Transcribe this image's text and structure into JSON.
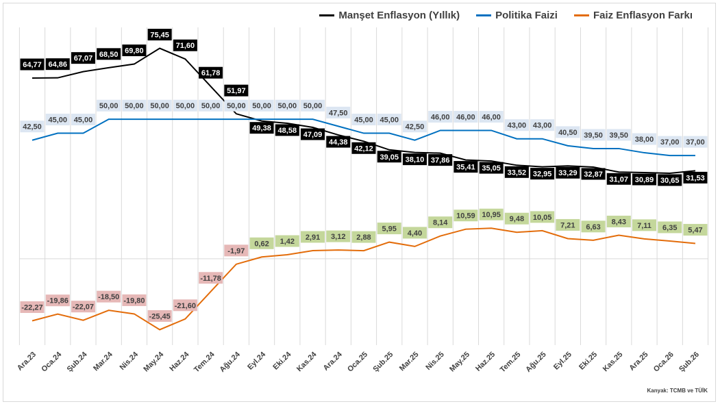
{
  "chart_data": {
    "type": "line",
    "categories": [
      "Ara.23",
      "Oca.24",
      "Şub.24",
      "Mar.24",
      "Nis.24",
      "May.24",
      "Haz.24",
      "Tem.24",
      "Ağu.24",
      "Eyl.24",
      "Eki.24",
      "Kas.24",
      "Ara.24",
      "Oca.25",
      "Şub.25",
      "Mar.25",
      "Nis.25",
      "May.25",
      "Haz.25",
      "Tem.25",
      "Ağu.25",
      "Eyl.25",
      "Eki.25",
      "Kas.25",
      "Ara.25",
      "Oca.26",
      "Şub.26"
    ],
    "series": [
      {
        "name": "Manşet Enflasyon (Yıllık)",
        "color": "#000000",
        "label_bg": "#000000",
        "label_color": "#ffffff",
        "values": [
          64.77,
          64.86,
          67.07,
          68.5,
          69.8,
          75.45,
          71.6,
          61.78,
          51.97,
          49.38,
          48.58,
          47.09,
          44.38,
          42.12,
          39.05,
          38.1,
          37.86,
          35.41,
          35.05,
          33.52,
          32.95,
          33.29,
          32.87,
          31.07,
          30.89,
          30.65,
          31.53
        ]
      },
      {
        "name": "Politika Faizi",
        "color": "#0070c0",
        "label_bg": "#dce6f2",
        "label_color": "#404040",
        "values": [
          42.5,
          45.0,
          45.0,
          50.0,
          50.0,
          50.0,
          50.0,
          50.0,
          50.0,
          50.0,
          50.0,
          50.0,
          47.5,
          45.0,
          45.0,
          42.5,
          46.0,
          46.0,
          46.0,
          43.0,
          43.0,
          40.5,
          39.5,
          39.5,
          38.0,
          37.0,
          37.0
        ]
      },
      {
        "name": "Faiz Enflasyon Farkı",
        "color": "#e36c0a",
        "label_bg_positive": "#c4d79b",
        "label_bg_negative": "#e6b8b7",
        "label_color": "#404040",
        "values": [
          -22.27,
          -19.86,
          -22.07,
          -18.5,
          -19.8,
          -25.45,
          -21.6,
          -11.78,
          -1.97,
          0.62,
          1.42,
          2.91,
          3.12,
          2.88,
          5.95,
          4.4,
          8.14,
          10.59,
          10.95,
          9.48,
          10.05,
          7.21,
          6.63,
          8.43,
          7.11,
          6.35,
          5.47
        ]
      }
    ],
    "ylim": [
      -30,
      80
    ],
    "grid": "vertical",
    "legend": "top-right",
    "decimal_separator": ","
  },
  "source": "Kanyak: TCMB ve TÜİK"
}
